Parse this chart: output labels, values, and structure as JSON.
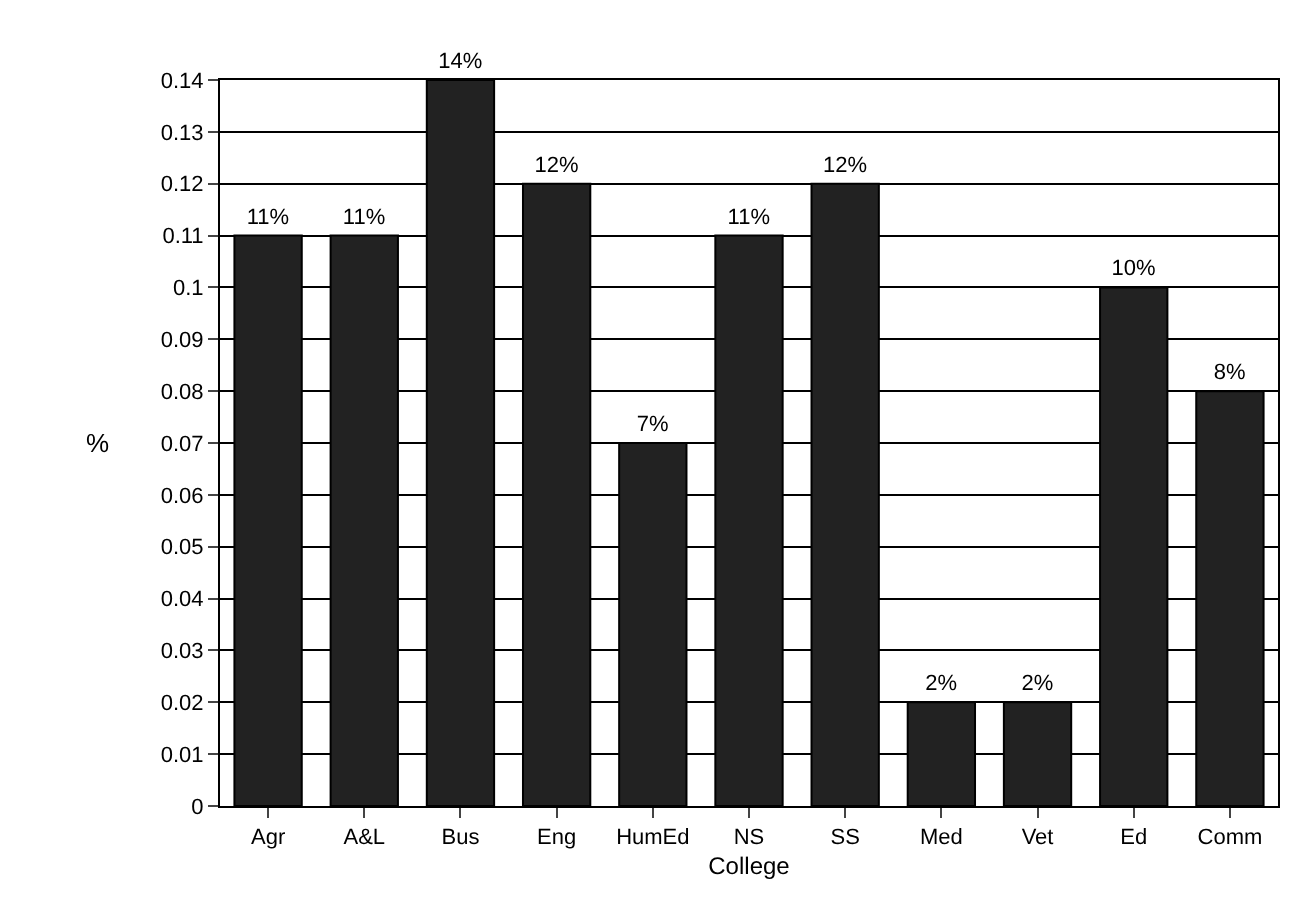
{
  "chart_data": {
    "type": "bar",
    "xlabel": "College",
    "ylabel": "%",
    "categories": [
      "Agr",
      "A&L",
      "Bus",
      "Eng",
      "HumEd",
      "NS",
      "SS",
      "Med",
      "Vet",
      "Ed",
      "Comm"
    ],
    "values": [
      0.11,
      0.11,
      0.14,
      0.12,
      0.07,
      0.11,
      0.12,
      0.02,
      0.02,
      0.1,
      0.08
    ],
    "value_labels": [
      "11%",
      "11%",
      "14%",
      "12%",
      "7%",
      "11%",
      "12%",
      "2%",
      "2%",
      "10%",
      "8%"
    ],
    "color": "#222222",
    "ylim": [
      0,
      0.14
    ],
    "yticks": [
      0,
      0.01,
      0.02,
      0.03,
      0.04,
      0.05,
      0.06,
      0.07,
      0.08,
      0.09,
      0.1,
      0.11,
      0.12,
      0.13,
      0.14
    ],
    "grid": "y"
  }
}
